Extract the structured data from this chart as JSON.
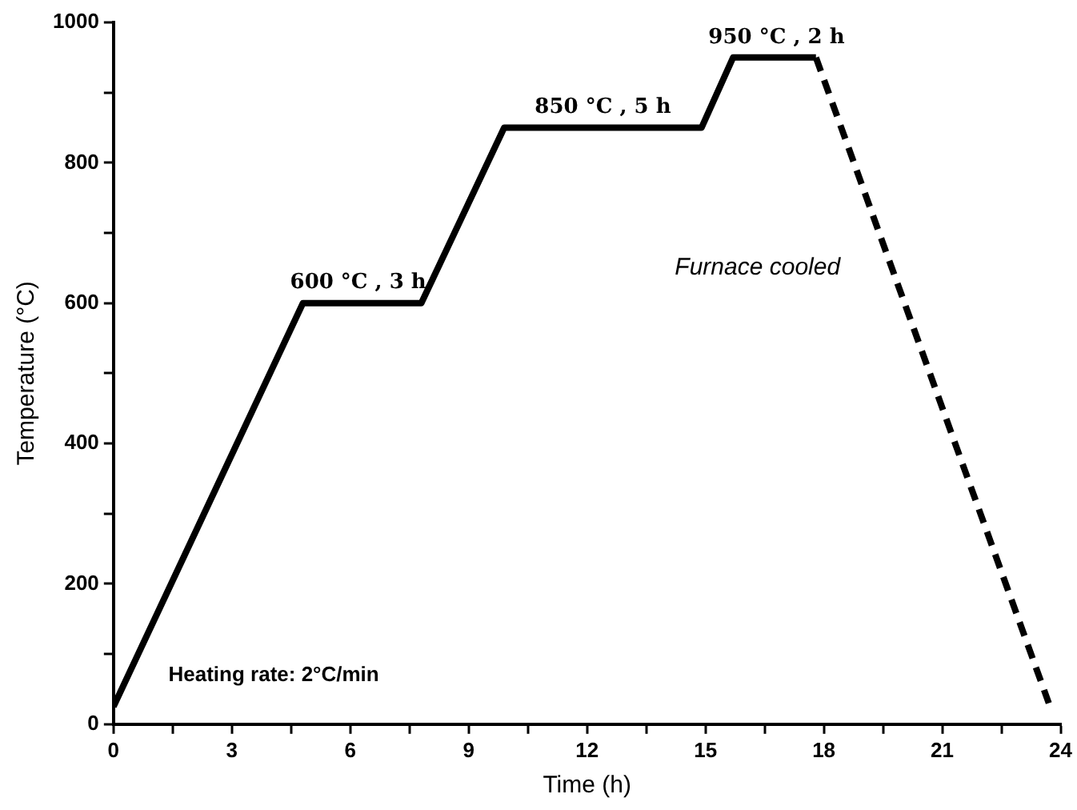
{
  "chart_data": {
    "type": "line",
    "xlabel": "Time (h)",
    "ylabel": "Temperature (°C)",
    "xlim": [
      0,
      24
    ],
    "xticks": [
      0,
      {
        "value": 1.5,
        "label": null
      },
      3,
      {
        "value": 4.5,
        "label": null
      },
      6,
      {
        "value": 7.5,
        "label": null
      },
      9,
      {
        "value": 10.5,
        "label": null
      },
      12,
      {
        "value": 13.5,
        "label": null
      },
      15,
      {
        "value": 16.5,
        "label": null
      },
      18,
      {
        "value": 19.5,
        "label": null
      },
      21,
      {
        "value": 22.5,
        "label": null
      },
      24
    ],
    "ylim": [
      0,
      1000
    ],
    "yticks": [
      0,
      {
        "value": 100,
        "label": null
      },
      200,
      {
        "value": 300,
        "label": null
      },
      400,
      {
        "value": 500,
        "label": null
      },
      600,
      {
        "value": 700,
        "label": null
      },
      800,
      {
        "value": 900,
        "label": null
      },
      1000
    ],
    "grid": false,
    "legend": false,
    "marker": "none",
    "series": [
      {
        "color": "#000000",
        "line_style": "solid",
        "x": [
          0,
          4.8,
          7.8,
          9.9,
          14.9,
          15.7,
          17.8
        ],
        "values": [
          25,
          600,
          600,
          850,
          850,
          950,
          950
        ]
      },
      {
        "color": "#000000",
        "line_style": "dashed",
        "x": [
          17.8,
          23.7
        ],
        "values": [
          950,
          30
        ]
      }
    ],
    "annotations": [
      {
        "text": "600 °C , 3 h",
        "x": 6.2,
        "y": 600
      },
      {
        "text": "850 °C , 5 h",
        "x": 12.4,
        "y": 850
      },
      {
        "text": "950 °C , 2 h",
        "x": 16.8,
        "y": 950
      },
      "Furnace cooled",
      "Heating rate: 2°C/min"
    ]
  }
}
